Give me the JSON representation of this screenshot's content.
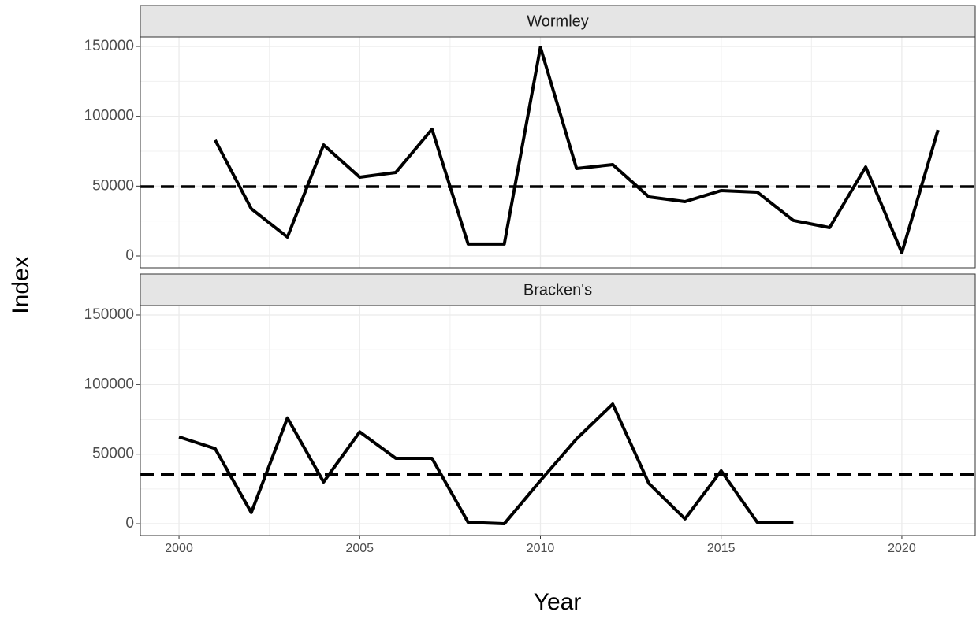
{
  "axes": {
    "xlabel": "Year",
    "ylabel": "Index"
  },
  "chart_data": [
    {
      "type": "line",
      "title": "Wormley",
      "x": [
        2001,
        2002,
        2003,
        2004,
        2005,
        2006,
        2007,
        2008,
        2009,
        2010,
        2011,
        2012,
        2013,
        2014,
        2015,
        2016,
        2017,
        2018,
        2019,
        2020,
        2021
      ],
      "values": [
        83000,
        33800,
        13500,
        79500,
        56400,
        59800,
        90800,
        8500,
        8500,
        149400,
        62600,
        65400,
        42300,
        38900,
        46800,
        45700,
        25400,
        20300,
        63700,
        2300,
        90200
      ],
      "color": "#000000",
      "hline": 49600,
      "xlim": [
        1998.93,
        2022.03
      ],
      "xticks": [
        2000,
        2005,
        2010,
        2015,
        2020
      ],
      "ylim": [
        -8460,
        156770
      ],
      "yticks": [
        0,
        50000,
        100000,
        150000
      ],
      "grid": true
    },
    {
      "type": "line",
      "title": "Bracken's",
      "x": [
        2000,
        2001,
        2002,
        2003,
        2004,
        2005,
        2006,
        2007,
        2008,
        2009,
        2010,
        2011,
        2012,
        2013,
        2014,
        2015,
        2016,
        2017
      ],
      "values": [
        62400,
        54000,
        8000,
        76000,
        30000,
        66000,
        47000,
        47000,
        1000,
        0,
        31000,
        61000,
        86000,
        29000,
        3500,
        38000,
        1000,
        1000
      ],
      "color": "#000000",
      "hline": 35500,
      "xlim": [
        1998.93,
        2022.03
      ],
      "xticks": [
        2000,
        2005,
        2010,
        2015,
        2020
      ],
      "ylim": [
        -8460,
        156770
      ],
      "yticks": [
        0,
        50000,
        100000,
        150000
      ],
      "grid": true
    }
  ]
}
